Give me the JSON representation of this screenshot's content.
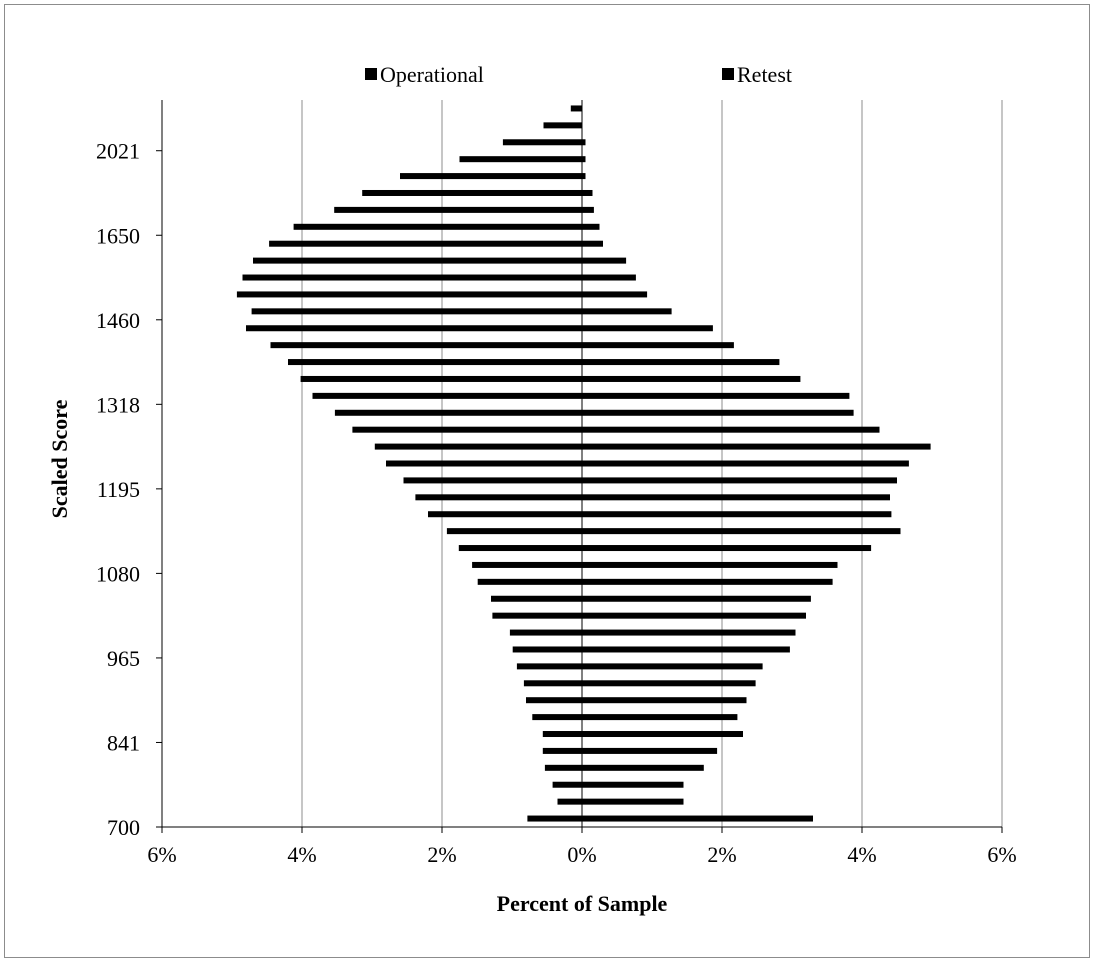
{
  "chart_data": {
    "type": "bar",
    "orientation": "horizontal",
    "layout": "back-to-back",
    "title": "",
    "xlabel": "Percent of Sample",
    "ylabel": "Scaled Score",
    "xlim": [
      -6,
      6
    ],
    "x_ticks": [
      -6,
      -4,
      -2,
      0,
      2,
      4,
      6
    ],
    "x_tick_labels": [
      "6%",
      "4%",
      "2%",
      "0%",
      "2%",
      "4%",
      "6%"
    ],
    "y_tick_labels": [
      "700",
      "841",
      "965",
      "1080",
      "1195",
      "1318",
      "1460",
      "1650",
      "2021"
    ],
    "grid": "vertical",
    "legend_position": "top",
    "bar_color": "#000000",
    "series": [
      {
        "name": "Operational",
        "side": "left",
        "values": [
          0.78,
          0.35,
          0.42,
          0.53,
          0.56,
          0.56,
          0.71,
          0.8,
          0.83,
          0.93,
          0.99,
          1.03,
          1.28,
          1.3,
          1.49,
          1.57,
          1.76,
          1.93,
          2.2,
          2.38,
          2.55,
          2.8,
          2.96,
          3.28,
          3.53,
          3.85,
          4.02,
          4.2,
          4.45,
          4.8,
          4.72,
          4.93,
          4.85,
          4.7,
          4.47,
          4.12,
          3.54,
          3.14,
          2.6,
          1.75,
          1.13,
          0.55,
          0.16
        ]
      },
      {
        "name": "Retest",
        "side": "right",
        "values": [
          3.3,
          1.45,
          1.45,
          1.74,
          1.93,
          2.3,
          2.22,
          2.35,
          2.48,
          2.58,
          2.97,
          3.05,
          3.2,
          3.27,
          3.58,
          3.65,
          4.13,
          4.55,
          4.42,
          4.4,
          4.5,
          4.67,
          4.98,
          4.25,
          3.88,
          3.82,
          3.12,
          2.82,
          2.17,
          1.87,
          1.28,
          0.93,
          0.77,
          0.63,
          0.3,
          0.25,
          0.17,
          0.15,
          0.05,
          0.05,
          0.05,
          0.0,
          0.0
        ]
      }
    ]
  }
}
